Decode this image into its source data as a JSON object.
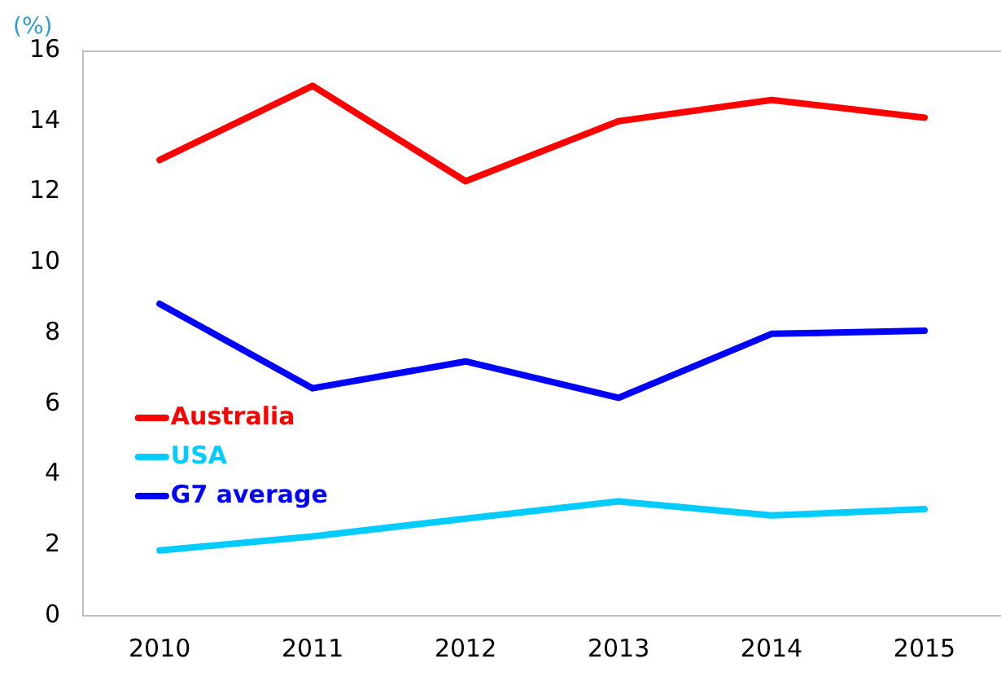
{
  "chart_data": {
    "type": "line",
    "ylabel": "(%)",
    "categories": [
      "2010",
      "2011",
      "2012",
      "2013",
      "2014",
      "2015"
    ],
    "series": [
      {
        "name": "Australia",
        "color": "#ff0000",
        "values": [
          12.9,
          15.0,
          12.3,
          14.0,
          14.6,
          14.1
        ]
      },
      {
        "name": "USA",
        "color": "#00ccff",
        "values": [
          1.85,
          2.25,
          2.75,
          3.24,
          2.84,
          3.02
        ]
      },
      {
        "name": "G7 average",
        "color": "#0000ff",
        "values": [
          8.83,
          6.44,
          7.2,
          6.17,
          7.98,
          8.07
        ]
      }
    ],
    "ylim": [
      0,
      16
    ],
    "yticks": [
      0,
      2,
      4,
      6,
      8,
      10,
      12,
      14,
      16
    ],
    "grid": false,
    "legend": "left",
    "marker": "none",
    "line_style": "solid"
  }
}
